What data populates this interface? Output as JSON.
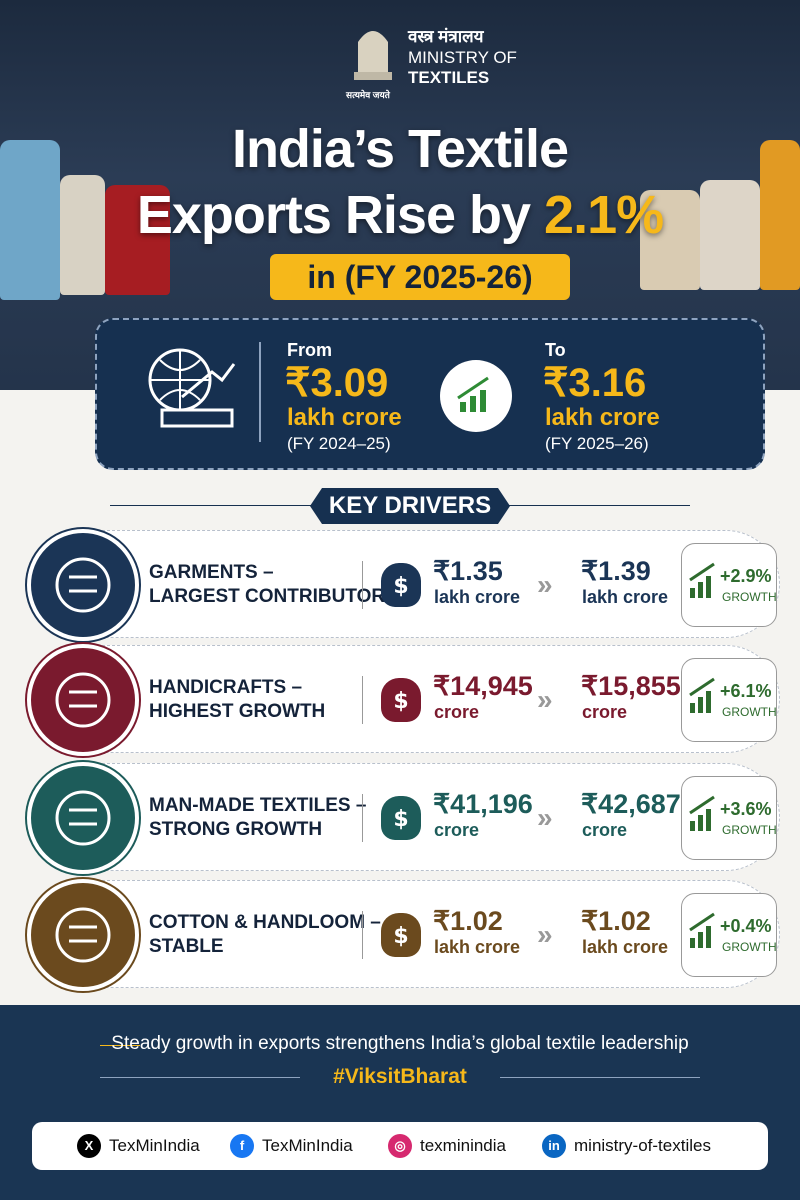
{
  "header": {
    "ministry_hindi": "वस्त्र मंत्रालय",
    "ministry_line1": "MINISTRY OF",
    "ministry_line2": "TEXTILES",
    "motto": "सत्यमेव जयते"
  },
  "title": {
    "line1": "India’s Textile",
    "line2": "Exports Rise by",
    "highlight": "2.1%",
    "subtitle": "in (FY 2025-26)"
  },
  "summary": {
    "from": {
      "label": "From",
      "amount": "₹3.09",
      "unit": "lakh crore",
      "period": "(FY 2024–25)"
    },
    "to": {
      "label": "To",
      "amount": "₹3.16",
      "unit": "lakh crore",
      "period": "(FY 2025–26)"
    }
  },
  "section_title": "KEY DRIVERS",
  "drivers": [
    {
      "title1": "GARMENTS –",
      "title2": "LARGEST CONTRIBUTOR",
      "from_amount": "₹1.35",
      "from_unit": "lakh crore",
      "to_amount": "₹1.39",
      "to_unit": "lakh crore",
      "growth": "+2.9%",
      "growth_label": "GROWTH"
    },
    {
      "title1": "HANDICRAFTS –",
      "title2": "HIGHEST GROWTH",
      "from_amount": "₹14,945",
      "from_unit": "crore",
      "to_amount": "₹15,855",
      "to_unit": "crore",
      "growth": "+6.1%",
      "growth_label": "GROWTH"
    },
    {
      "title1": "MAN-MADE TEXTILES –",
      "title2": "STRONG GROWTH",
      "from_amount": "₹41,196",
      "from_unit": "crore",
      "to_amount": "₹42,687",
      "to_unit": "crore",
      "growth": "+3.6%",
      "growth_label": "GROWTH"
    },
    {
      "title1": "COTTON & HANDLOOM –",
      "title2": "STABLE",
      "from_amount": "₹1.02",
      "from_unit": "lakh crore",
      "to_amount": "₹1.02",
      "to_unit": "lakh crore",
      "growth": "+0.4%",
      "growth_label": "GROWTH"
    }
  ],
  "footer": {
    "tagline": "Steady growth in exports strengthens India’s global textile leadership",
    "hashtag": "#ViksitBharat",
    "socials": [
      {
        "platform": "X",
        "handle": "TexMinIndia"
      },
      {
        "platform": "Facebook",
        "handle": "TexMinIndia"
      },
      {
        "platform": "Instagram",
        "handle": "texminindia"
      },
      {
        "platform": "LinkedIn",
        "handle": "ministry-of-textiles"
      }
    ]
  }
}
